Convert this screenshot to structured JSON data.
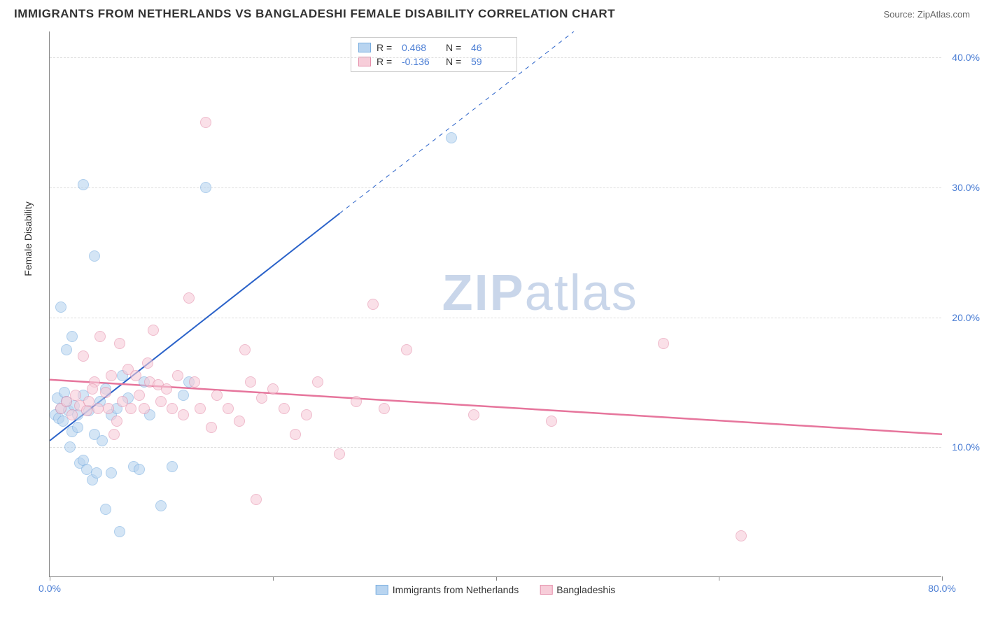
{
  "title": "IMMIGRANTS FROM NETHERLANDS VS BANGLADESHI FEMALE DISABILITY CORRELATION CHART",
  "source": "Source: ZipAtlas.com",
  "ylabel": "Female Disability",
  "watermark_part1": "ZIP",
  "watermark_part2": "atlas",
  "chart": {
    "type": "scatter",
    "xlim": [
      0,
      80
    ],
    "ylim": [
      0,
      42
    ],
    "y_ticks": [
      10,
      20,
      30,
      40
    ],
    "y_tick_labels": [
      "10.0%",
      "20.0%",
      "30.0%",
      "40.0%"
    ],
    "x_ticks": [
      0,
      20,
      40,
      60,
      80
    ],
    "x_tick_labels": [
      "0.0%",
      "",
      "",
      "",
      "80.0%"
    ],
    "background_color": "#ffffff",
    "grid_color": "#dddddd",
    "axis_color": "#888888",
    "label_color": "#4a7dd4",
    "point_radius": 8,
    "series": [
      {
        "name": "Immigrants from Netherlands",
        "color_fill": "#b8d4f0",
        "color_stroke": "#7aaee0",
        "r": "0.468",
        "n": "46",
        "trend": {
          "x1": 0,
          "y1": 10.5,
          "x2": 26,
          "y2": 28,
          "dash_from_x": 26,
          "dash_to_x": 47,
          "dash_to_y": 42,
          "color": "#2a62c9",
          "width": 2
        },
        "points": [
          [
            0.5,
            12.5
          ],
          [
            0.7,
            13.8
          ],
          [
            0.8,
            12.2
          ],
          [
            1.0,
            13.0
          ],
          [
            1.0,
            20.8
          ],
          [
            1.2,
            12.0
          ],
          [
            1.3,
            14.2
          ],
          [
            1.5,
            17.5
          ],
          [
            1.5,
            13.5
          ],
          [
            1.7,
            12.8
          ],
          [
            1.8,
            10.0
          ],
          [
            2.0,
            18.5
          ],
          [
            2.0,
            11.2
          ],
          [
            2.2,
            13.2
          ],
          [
            2.5,
            12.5
          ],
          [
            2.7,
            8.8
          ],
          [
            3.0,
            30.2
          ],
          [
            3.0,
            14.0
          ],
          [
            3.0,
            9.0
          ],
          [
            3.3,
            8.3
          ],
          [
            3.5,
            12.8
          ],
          [
            3.8,
            7.5
          ],
          [
            4.0,
            24.7
          ],
          [
            4.0,
            11.0
          ],
          [
            4.2,
            8.0
          ],
          [
            4.5,
            13.5
          ],
          [
            4.7,
            10.5
          ],
          [
            5.0,
            5.2
          ],
          [
            5.5,
            8.0
          ],
          [
            5.5,
            12.5
          ],
          [
            6.0,
            13.0
          ],
          [
            6.3,
            3.5
          ],
          [
            7.0,
            13.8
          ],
          [
            7.5,
            8.5
          ],
          [
            8.0,
            8.3
          ],
          [
            8.5,
            15.0
          ],
          [
            9.0,
            12.5
          ],
          [
            10.0,
            5.5
          ],
          [
            11.0,
            8.5
          ],
          [
            12.0,
            14.0
          ],
          [
            14.0,
            30.0
          ],
          [
            12.5,
            15.0
          ],
          [
            6.5,
            15.5
          ],
          [
            5.0,
            14.5
          ],
          [
            2.5,
            11.5
          ],
          [
            36.0,
            33.8
          ]
        ]
      },
      {
        "name": "Bangladeshis",
        "color_fill": "#f7cdd9",
        "color_stroke": "#e58fab",
        "r": "-0.136",
        "n": "59",
        "trend": {
          "x1": 0,
          "y1": 15.2,
          "x2": 80,
          "y2": 11.0,
          "color": "#e6759c",
          "width": 2.5
        },
        "points": [
          [
            1.0,
            13.0
          ],
          [
            1.5,
            13.5
          ],
          [
            2.0,
            12.5
          ],
          [
            2.3,
            14.0
          ],
          [
            2.7,
            13.2
          ],
          [
            3.0,
            17.0
          ],
          [
            3.3,
            12.8
          ],
          [
            3.5,
            13.5
          ],
          [
            4.0,
            15.0
          ],
          [
            4.3,
            13.0
          ],
          [
            4.5,
            18.5
          ],
          [
            5.0,
            14.2
          ],
          [
            5.3,
            13.0
          ],
          [
            5.5,
            15.5
          ],
          [
            6.0,
            12.0
          ],
          [
            6.3,
            18.0
          ],
          [
            6.5,
            13.5
          ],
          [
            7.0,
            16.0
          ],
          [
            7.3,
            13.0
          ],
          [
            7.7,
            15.5
          ],
          [
            8.0,
            14.0
          ],
          [
            8.5,
            13.0
          ],
          [
            9.0,
            15.0
          ],
          [
            9.3,
            19.0
          ],
          [
            9.7,
            14.8
          ],
          [
            10.0,
            13.5
          ],
          [
            10.5,
            14.5
          ],
          [
            11.0,
            13.0
          ],
          [
            11.5,
            15.5
          ],
          [
            12.0,
            12.5
          ],
          [
            12.5,
            21.5
          ],
          [
            13.0,
            15.0
          ],
          [
            13.5,
            13.0
          ],
          [
            14.0,
            35.0
          ],
          [
            14.5,
            11.5
          ],
          [
            15.0,
            14.0
          ],
          [
            16.0,
            13.0
          ],
          [
            17.0,
            12.0
          ],
          [
            17.5,
            17.5
          ],
          [
            18.0,
            15.0
          ],
          [
            18.5,
            6.0
          ],
          [
            19.0,
            13.8
          ],
          [
            20.0,
            14.5
          ],
          [
            21.0,
            13.0
          ],
          [
            22.0,
            11.0
          ],
          [
            23.0,
            12.5
          ],
          [
            24.0,
            15.0
          ],
          [
            26.0,
            9.5
          ],
          [
            27.5,
            13.5
          ],
          [
            29.0,
            21.0
          ],
          [
            32.0,
            17.5
          ],
          [
            30.0,
            13.0
          ],
          [
            38.0,
            12.5
          ],
          [
            55.0,
            18.0
          ],
          [
            62.0,
            3.2
          ],
          [
            45.0,
            12.0
          ],
          [
            3.8,
            14.5
          ],
          [
            5.8,
            11.0
          ],
          [
            8.8,
            16.5
          ]
        ]
      }
    ]
  },
  "legend_top": {
    "r_label": "R  =",
    "n_label": "N  ="
  },
  "legend_bottom": [
    {
      "swatch_fill": "#b8d4f0",
      "swatch_stroke": "#7aaee0",
      "label": "Immigrants from Netherlands"
    },
    {
      "swatch_fill": "#f7cdd9",
      "swatch_stroke": "#e58fab",
      "label": "Bangladeshis"
    }
  ]
}
